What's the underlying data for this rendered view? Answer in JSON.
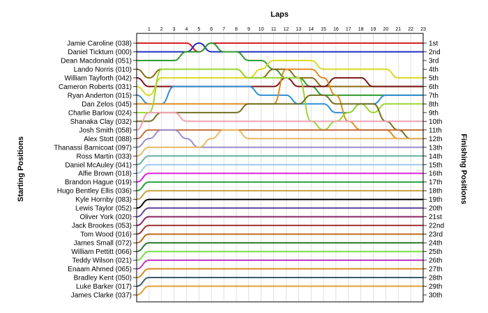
{
  "chart_data": {
    "type": "line",
    "title": "",
    "xlabel": "Laps",
    "ylabel_left": "Starting Positions",
    "ylabel_right": "Finishing Positions",
    "laps": [
      1,
      2,
      3,
      4,
      5,
      6,
      7,
      8,
      9,
      10,
      11,
      12,
      13,
      14,
      15,
      16,
      17,
      18,
      19,
      20,
      21,
      22,
      23
    ],
    "xlim": [
      0,
      23
    ],
    "ylim": [
      1,
      30
    ],
    "grid": true,
    "drivers": [
      {
        "name": "Jamie Caroline (038)",
        "color": "#d62020"
      },
      {
        "name": "Daniel Ticktum (000)",
        "color": "#1f2fbf"
      },
      {
        "name": "Dean Macdonald (051)",
        "color": "#2f9a2f"
      },
      {
        "name": "Lando Norris (010)",
        "color": "#8b6a10"
      },
      {
        "name": "William Tayforth (042)",
        "color": "#7a1515"
      },
      {
        "name": "Cameron Roberts (031)",
        "color": "#d9d920"
      },
      {
        "name": "Ryan Anderton (015)",
        "color": "#2f8fd6"
      },
      {
        "name": "Dan Zelos (045)",
        "color": "#e08a1c"
      },
      {
        "name": "Charlie Barlow (024)",
        "color": "#9ad630"
      },
      {
        "name": "Shanaka Clay (032)",
        "color": "#707020"
      },
      {
        "name": "Josh Smith (058)",
        "color": "#f0a0b0"
      },
      {
        "name": "Alex Stott (088)",
        "color": "#c86e3c"
      },
      {
        "name": "Thanassi Barnicoat (097)",
        "color": "#9a8ad0"
      },
      {
        "name": "Ross Martin (033)",
        "color": "#e8b860"
      },
      {
        "name": "Daniel McAuley (041)",
        "color": "#66b0a0"
      },
      {
        "name": "Alfie Brown (018)",
        "color": "#a0c8f0"
      },
      {
        "name": "Brandon Hague (019)",
        "color": "#e020e0"
      },
      {
        "name": "Hugo Bentley Ellis (036)",
        "color": "#20a040"
      },
      {
        "name": "Kyle Hornby (083)",
        "color": "#c8a040"
      },
      {
        "name": "Lewis Taylor (052)",
        "color": "#000000"
      },
      {
        "name": "Oliver York (020)",
        "color": "#6040a0"
      },
      {
        "name": "Jack Brookes (053)",
        "color": "#8b2060"
      },
      {
        "name": "Tom Wood (016)",
        "color": "#a03030"
      },
      {
        "name": "James Small (072)",
        "color": "#c06a10"
      },
      {
        "name": "William Pettitt (066)",
        "color": "#2a7a2a"
      },
      {
        "name": "Teddy Wilson (021)",
        "color": "#70e040"
      },
      {
        "name": "Enaam Ahmed (065)",
        "color": "#c030c0"
      },
      {
        "name": "Bradley Kent (050)",
        "color": "#d88a20"
      },
      {
        "name": "Luke Barker (017)",
        "color": "#3a5a6a"
      },
      {
        "name": "James Clarke (037)",
        "color": "#e0a030"
      }
    ],
    "finishing_labels": [
      "1st",
      "2nd",
      "3rd",
      "4th",
      "5th",
      "6th",
      "7th",
      "8th",
      "9th",
      "10th",
      "11th",
      "12th",
      "13th",
      "14th",
      "15th",
      "16th",
      "17th",
      "18th",
      "19th",
      "20th",
      "21st",
      "22nd",
      "23rd",
      "24th",
      "25th",
      "26th",
      "27th",
      "28th",
      "29th",
      "30th"
    ],
    "positions": [
      [
        1,
        1,
        1,
        1,
        1,
        2,
        1,
        1,
        1,
        1,
        1,
        1,
        1,
        1,
        1,
        1,
        1,
        1,
        1,
        1,
        1,
        1,
        1,
        1
      ],
      [
        2,
        2,
        2,
        2,
        2,
        1,
        2,
        2,
        2,
        2,
        2,
        2,
        2,
        2,
        2,
        2,
        2,
        2,
        2,
        2,
        2,
        2,
        2,
        2
      ],
      [
        3,
        3,
        3,
        3,
        2,
        2,
        1,
        2,
        2,
        3,
        3,
        4,
        5,
        5,
        6,
        7,
        7,
        7,
        7,
        7,
        7,
        7,
        7,
        7
      ],
      [
        4,
        5,
        4,
        4,
        4,
        4,
        4,
        4,
        4,
        5,
        5,
        4,
        4,
        5,
        5,
        6,
        6,
        6,
        6,
        6,
        6,
        6,
        6,
        6
      ],
      [
        5,
        6,
        6,
        6,
        6,
        6,
        6,
        6,
        6,
        6,
        6,
        6,
        5,
        6,
        6,
        6,
        5,
        5,
        5,
        6,
        6,
        6,
        6,
        6
      ],
      [
        6,
        7,
        5,
        5,
        5,
        5,
        5,
        5,
        5,
        5,
        4,
        3,
        3,
        3,
        3,
        4,
        4,
        4,
        4,
        4,
        4,
        5,
        5,
        5
      ],
      [
        7,
        8,
        8,
        6,
        6,
        6,
        6,
        6,
        6,
        6,
        7,
        7,
        7,
        8,
        8,
        8,
        9,
        9,
        8,
        8,
        7,
        7,
        7,
        7
      ],
      [
        8,
        8,
        8,
        8,
        8,
        8,
        8,
        8,
        8,
        8,
        8,
        8,
        4,
        4,
        4,
        5,
        7,
        10,
        11,
        11,
        11,
        12,
        12,
        12
      ],
      [
        9,
        9,
        4,
        4,
        4,
        4,
        4,
        4,
        4,
        5,
        5,
        5,
        5,
        5,
        10,
        11,
        10,
        9,
        8,
        9,
        8,
        8,
        8,
        8
      ],
      [
        10,
        10,
        9,
        9,
        9,
        9,
        9,
        9,
        9,
        8,
        8,
        8,
        8,
        8,
        7,
        7,
        8,
        8,
        8,
        8,
        10,
        11,
        12,
        12
      ],
      [
        11,
        9,
        9,
        9,
        10,
        10,
        10,
        10,
        10,
        10,
        10,
        10,
        10,
        10,
        10,
        10,
        10,
        10,
        10,
        10,
        10,
        10,
        10,
        10
      ],
      [
        12,
        11,
        11,
        11,
        11,
        11,
        11,
        11,
        11,
        11,
        11,
        11,
        11,
        11,
        11,
        11,
        11,
        11,
        11,
        11,
        11,
        11,
        11,
        11
      ],
      [
        13,
        12,
        11,
        11,
        12,
        13,
        13,
        13,
        13,
        13,
        13,
        13,
        13,
        13,
        13,
        13,
        13,
        13,
        13,
        13,
        13,
        13,
        13,
        13
      ],
      [
        14,
        13,
        13,
        13,
        13,
        13,
        12,
        11,
        11,
        12,
        12,
        12,
        12,
        12,
        12,
        12,
        12,
        12,
        12,
        12,
        12,
        12,
        12,
        12
      ],
      [
        15,
        14,
        14,
        14,
        14,
        14,
        14,
        14,
        14,
        14,
        14,
        14,
        14,
        14,
        14,
        14,
        14,
        14,
        14,
        14,
        14,
        14,
        14,
        14
      ],
      [
        16,
        15,
        15,
        15,
        15,
        15,
        15,
        15,
        15,
        15,
        15,
        15,
        15,
        15,
        15,
        15,
        15,
        15,
        15,
        15,
        15,
        15,
        15,
        15
      ],
      [
        17,
        16,
        16,
        16,
        16,
        16,
        16,
        16,
        16,
        16,
        16,
        16,
        16,
        16,
        16,
        16,
        16,
        16,
        16,
        16,
        16,
        16,
        16,
        16
      ],
      [
        18,
        17,
        17,
        17,
        17,
        17,
        17,
        17,
        17,
        17,
        17,
        17,
        17,
        17,
        17,
        17,
        17,
        17,
        17,
        17,
        17,
        17,
        17,
        17
      ],
      [
        19,
        18,
        18,
        18,
        18,
        18,
        18,
        18,
        18,
        18,
        18,
        18,
        18,
        18,
        18,
        18,
        18,
        18,
        18,
        18,
        18,
        18,
        18,
        18
      ],
      [
        20,
        19,
        19,
        19,
        19,
        19,
        19,
        19,
        19,
        19,
        19,
        19,
        19,
        19,
        19,
        19,
        19,
        19,
        19,
        19,
        19,
        19,
        19,
        19
      ],
      [
        21,
        20,
        20,
        20,
        20,
        20,
        20,
        20,
        20,
        20,
        20,
        20,
        20,
        20,
        20,
        20,
        20,
        20,
        20,
        20,
        20,
        20,
        20,
        20
      ],
      [
        22,
        21,
        21,
        21,
        21,
        21,
        21,
        21,
        21,
        21,
        21,
        21,
        21,
        21,
        21,
        21,
        21,
        21,
        21,
        21,
        21,
        21,
        21,
        21
      ],
      [
        23,
        22,
        22,
        22,
        22,
        22,
        22,
        22,
        22,
        22,
        22,
        22,
        22,
        22,
        22,
        22,
        22,
        22,
        22,
        22,
        22,
        22,
        22,
        22
      ],
      [
        24,
        23,
        23,
        23,
        23,
        23,
        23,
        23,
        23,
        23,
        23,
        23,
        23,
        23,
        23,
        23,
        23,
        23,
        23,
        23,
        23,
        23,
        23,
        23
      ],
      [
        25,
        24,
        24,
        24,
        24,
        24,
        24,
        24,
        24,
        24,
        24,
        24,
        24,
        24,
        24,
        24,
        24,
        24,
        24,
        24,
        24,
        24,
        24,
        24
      ],
      [
        26,
        25,
        25,
        25,
        25,
        25,
        25,
        25,
        25,
        25,
        25,
        25,
        25,
        25,
        25,
        25,
        25,
        25,
        25,
        25,
        25,
        25,
        25,
        25
      ],
      [
        27,
        26,
        26,
        26,
        26,
        26,
        26,
        26,
        26,
        26,
        26,
        26,
        26,
        26,
        26,
        26,
        26,
        26,
        26,
        26,
        26,
        26,
        26,
        26
      ],
      [
        28,
        27,
        27,
        27,
        27,
        27,
        27,
        27,
        27,
        27,
        27,
        27,
        27,
        27,
        27,
        27,
        27,
        27,
        27,
        27,
        27,
        27,
        27,
        27
      ],
      [
        29,
        28,
        28,
        28,
        28,
        28,
        28,
        28,
        28,
        28,
        28,
        28,
        28,
        28,
        28,
        28,
        28,
        28,
        28,
        28,
        28,
        28,
        28,
        28
      ],
      [
        30,
        29,
        29,
        29,
        29,
        29,
        29,
        29,
        29,
        29,
        29,
        29,
        29,
        29,
        29,
        29,
        29,
        29,
        29,
        29,
        29,
        29,
        29,
        29
      ]
    ]
  }
}
